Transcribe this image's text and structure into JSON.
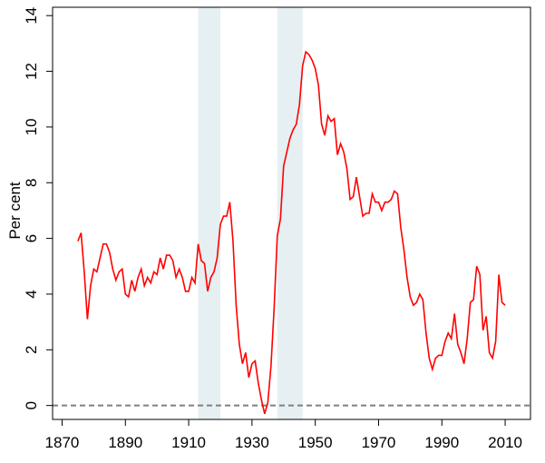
{
  "chart_data": {
    "type": "line",
    "ylabel": "Per cent",
    "x": [
      1875,
      1876,
      1877,
      1878,
      1879,
      1880,
      1881,
      1882,
      1883,
      1884,
      1885,
      1886,
      1887,
      1888,
      1889,
      1890,
      1891,
      1892,
      1893,
      1894,
      1895,
      1896,
      1897,
      1898,
      1899,
      1900,
      1901,
      1902,
      1903,
      1904,
      1905,
      1906,
      1907,
      1908,
      1909,
      1910,
      1911,
      1912,
      1913,
      1914,
      1915,
      1916,
      1917,
      1918,
      1919,
      1920,
      1921,
      1922,
      1923,
      1924,
      1925,
      1926,
      1927,
      1928,
      1929,
      1930,
      1931,
      1932,
      1933,
      1934,
      1935,
      1936,
      1937,
      1938,
      1939,
      1940,
      1941,
      1942,
      1943,
      1944,
      1945,
      1946,
      1947,
      1948,
      1949,
      1950,
      1951,
      1952,
      1953,
      1954,
      1955,
      1956,
      1957,
      1958,
      1959,
      1960,
      1961,
      1962,
      1963,
      1964,
      1965,
      1966,
      1967,
      1968,
      1969,
      1970,
      1971,
      1972,
      1973,
      1974,
      1975,
      1976,
      1977,
      1978,
      1979,
      1980,
      1981,
      1982,
      1983,
      1984,
      1985,
      1986,
      1987,
      1988,
      1989,
      1990,
      1991,
      1992,
      1993,
      1994,
      1995,
      1996,
      1997,
      1998,
      1999,
      2000,
      2001,
      2002,
      2003,
      2004,
      2005,
      2006,
      2007,
      2008,
      2009,
      2010
    ],
    "series": [
      {
        "color": "#ff0000",
        "values": [
          5.9,
          6.2,
          4.8,
          3.1,
          4.3,
          4.9,
          4.8,
          5.3,
          5.8,
          5.8,
          5.5,
          4.9,
          4.5,
          4.8,
          4.9,
          4.0,
          3.9,
          4.5,
          4.1,
          4.6,
          4.9,
          4.3,
          4.6,
          4.4,
          4.8,
          4.7,
          5.3,
          4.9,
          5.4,
          5.4,
          5.2,
          4.6,
          4.9,
          4.6,
          4.1,
          4.1,
          4.6,
          4.4,
          5.8,
          5.2,
          5.1,
          4.1,
          4.6,
          4.8,
          5.3,
          6.5,
          6.8,
          6.8,
          7.3,
          5.9,
          3.6,
          2.2,
          1.5,
          1.9,
          1.0,
          1.5,
          1.6,
          0.8,
          0.2,
          -0.3,
          0.1,
          1.4,
          3.5,
          6.1,
          6.7,
          8.6,
          9.1,
          9.6,
          9.9,
          10.1,
          10.8,
          12.2,
          12.7,
          12.6,
          12.4,
          12.1,
          11.5,
          10.1,
          9.7,
          10.4,
          10.2,
          10.3,
          9.0,
          9.4,
          9.1,
          8.5,
          7.4,
          7.5,
          8.2,
          7.5,
          6.8,
          6.9,
          6.9,
          7.6,
          7.3,
          7.3,
          7.0,
          7.3,
          7.3,
          7.4,
          7.7,
          7.6,
          6.4,
          5.6,
          4.6,
          3.9,
          3.6,
          3.7,
          4.0,
          3.8,
          2.6,
          1.7,
          1.3,
          1.7,
          1.8,
          1.8,
          2.3,
          2.6,
          2.4,
          3.3,
          2.2,
          1.9,
          1.5,
          2.4,
          3.7,
          3.8,
          5.0,
          4.7,
          2.7,
          3.2,
          1.9,
          1.7,
          2.3,
          4.7,
          3.7,
          3.6
        ]
      }
    ],
    "shaded_ranges": [
      [
        1913,
        1920
      ],
      [
        1938,
        1946
      ]
    ],
    "shade_color": "#e6eff2",
    "reference_line": 0,
    "reference_color": "#808080",
    "xlim": [
      1867,
      2018
    ],
    "xticks": [
      1870,
      1890,
      1910,
      1930,
      1950,
      1970,
      1990,
      2010
    ],
    "ylim": [
      -0.5,
      14.3
    ],
    "yticks": [
      0,
      2,
      4,
      6,
      8,
      10,
      12,
      14
    ]
  }
}
